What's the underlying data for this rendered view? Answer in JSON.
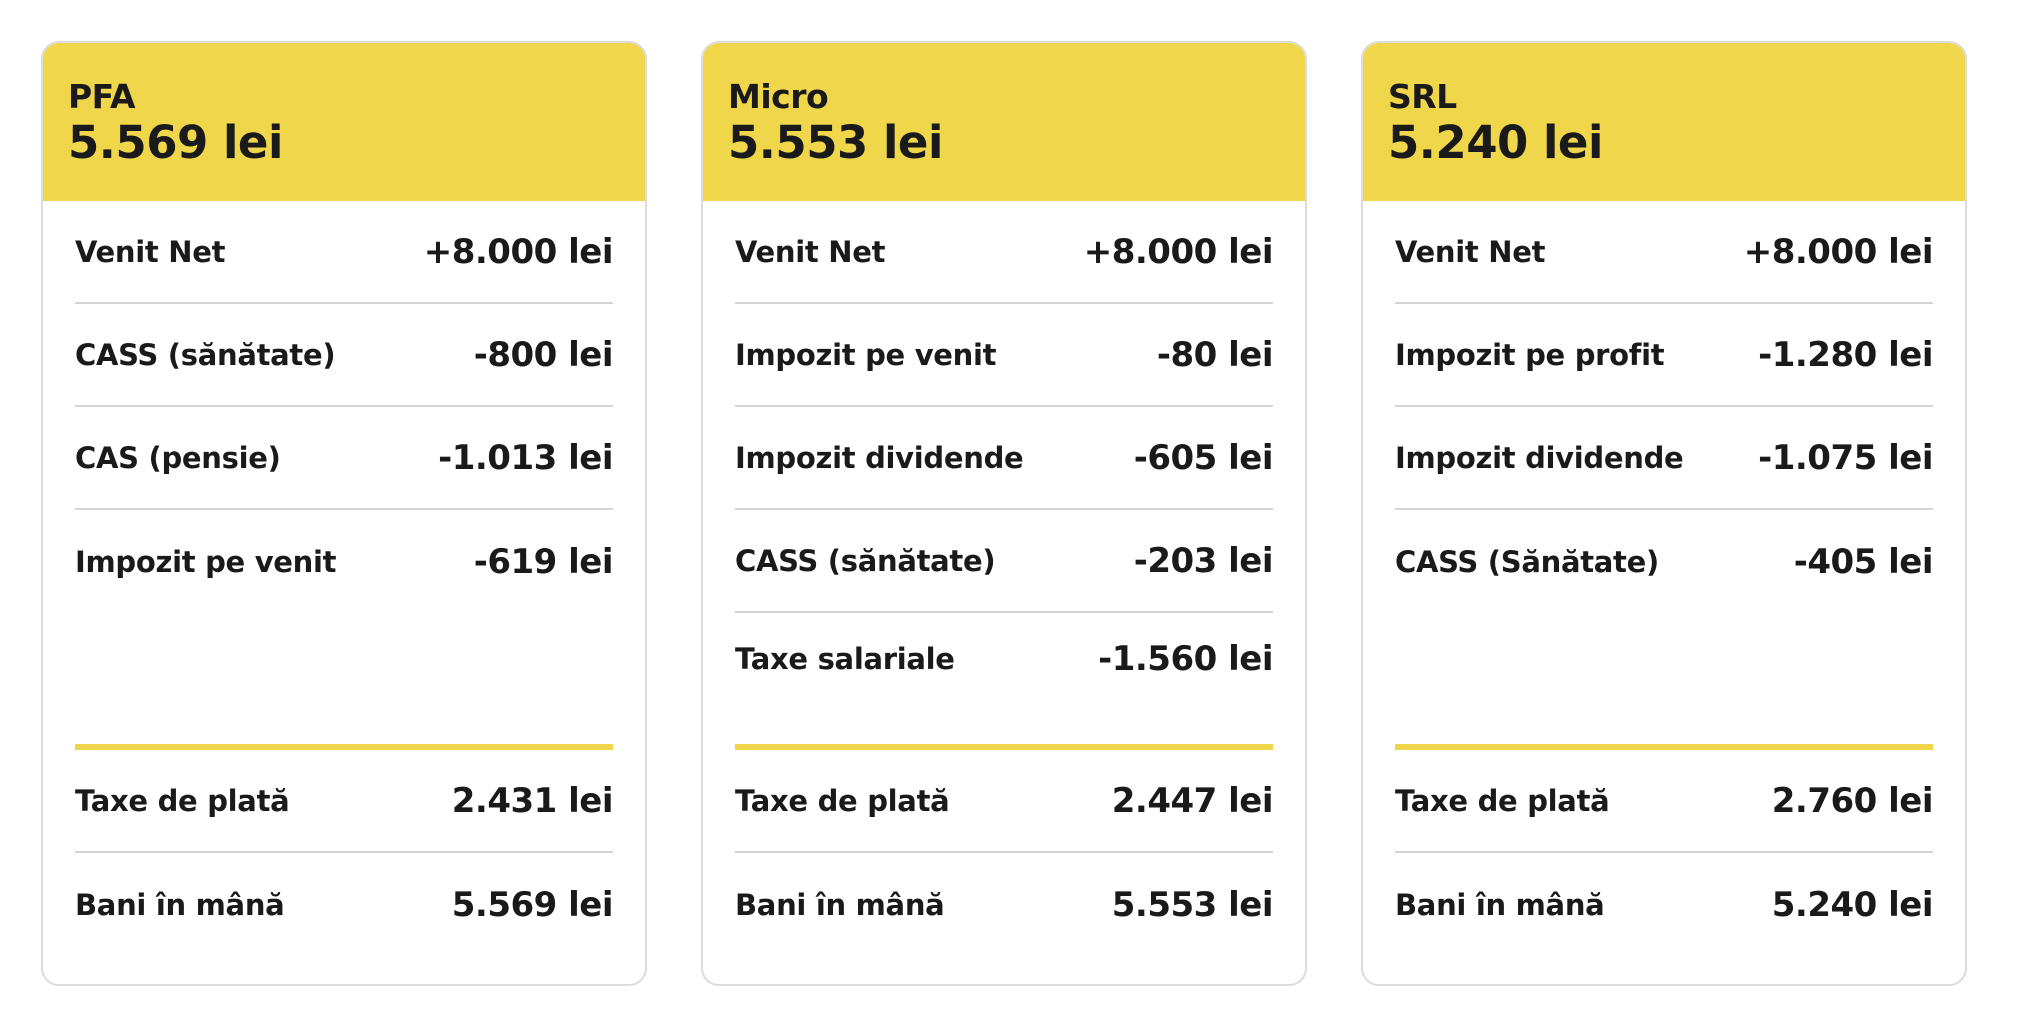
{
  "colors": {
    "accent": "#efd64b",
    "border": "#dcdcdc",
    "divider": "#d4d4d4",
    "text": "#1a1a1a"
  },
  "cards": [
    {
      "title": "PFA",
      "total": "5.569 lei",
      "rows": [
        {
          "label": "Venit Net",
          "value": "+8.000 lei"
        },
        {
          "label": "CASS (sănătate)",
          "value": "-800 lei"
        },
        {
          "label": "CAS (pensie)",
          "value": "-1.013 lei"
        },
        {
          "label": "Impozit pe venit",
          "value": "-619 lei"
        }
      ],
      "summary": [
        {
          "label": "Taxe de plată",
          "value": "2.431 lei"
        },
        {
          "label": "Bani în mână",
          "value": "5.569 lei"
        }
      ]
    },
    {
      "title": "Micro",
      "total": "5.553 lei",
      "rows": [
        {
          "label": "Venit Net",
          "value": "+8.000 lei"
        },
        {
          "label": "Impozit pe venit",
          "value": "-80 lei"
        },
        {
          "label": "Impozit dividende",
          "value": "-605 lei"
        },
        {
          "label": "CASS (sănătate)",
          "value": "-203 lei"
        },
        {
          "label": "Taxe salariale",
          "value": "-1.560 lei"
        }
      ],
      "summary": [
        {
          "label": "Taxe de plată",
          "value": "2.447 lei"
        },
        {
          "label": "Bani în mână",
          "value": "5.553 lei"
        }
      ]
    },
    {
      "title": "SRL",
      "total": "5.240 lei",
      "rows": [
        {
          "label": "Venit Net",
          "value": "+8.000 lei"
        },
        {
          "label": "Impozit pe profit",
          "value": "-1.280 lei"
        },
        {
          "label": "Impozit dividende",
          "value": "-1.075 lei"
        },
        {
          "label": "CASS (Sănătate)",
          "value": "-405 lei"
        }
      ],
      "summary": [
        {
          "label": "Taxe de plată",
          "value": "2.760 lei"
        },
        {
          "label": "Bani în mână",
          "value": "5.240 lei"
        }
      ]
    }
  ]
}
